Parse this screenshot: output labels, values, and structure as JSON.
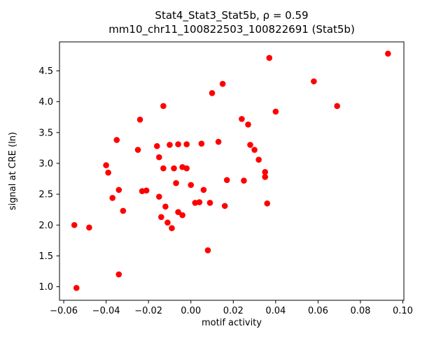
{
  "chart_data": {
    "type": "scatter",
    "title_line1": "Stat4_Stat3_Stat5b, ρ = 0.59",
    "title_line2": "mm10_chr11_100822503_100822691 (Stat5b)",
    "xlabel": "motif activity",
    "ylabel": "signal at CRE (ln)",
    "marker_color": "#ff0000",
    "marker_style": "circle",
    "legend": "none",
    "grid": false,
    "xlim": [
      -0.062,
      0.1005
    ],
    "ylim": [
      0.78,
      4.97
    ],
    "xticks": [
      -0.06,
      -0.04,
      -0.02,
      0.0,
      0.02,
      0.04,
      0.06,
      0.08,
      0.1
    ],
    "yticks": [
      1.0,
      1.5,
      2.0,
      2.5,
      3.0,
      3.5,
      4.0,
      4.5
    ],
    "correlation_rho": 0.59,
    "points": [
      [
        -0.055,
        2.0
      ],
      [
        -0.054,
        0.98
      ],
      [
        -0.048,
        1.96
      ],
      [
        -0.04,
        2.97
      ],
      [
        -0.039,
        2.85
      ],
      [
        -0.037,
        2.44
      ],
      [
        -0.035,
        3.38
      ],
      [
        -0.034,
        2.57
      ],
      [
        -0.034,
        1.2
      ],
      [
        -0.032,
        2.23
      ],
      [
        -0.025,
        3.22
      ],
      [
        -0.024,
        3.71
      ],
      [
        -0.023,
        2.55
      ],
      [
        -0.021,
        2.56
      ],
      [
        -0.016,
        3.28
      ],
      [
        -0.015,
        3.1
      ],
      [
        -0.015,
        2.46
      ],
      [
        -0.014,
        2.13
      ],
      [
        -0.013,
        3.93
      ],
      [
        -0.013,
        2.92
      ],
      [
        -0.012,
        2.3
      ],
      [
        -0.011,
        2.04
      ],
      [
        -0.01,
        3.3
      ],
      [
        -0.009,
        1.95
      ],
      [
        -0.008,
        2.92
      ],
      [
        -0.007,
        2.68
      ],
      [
        -0.006,
        3.31
      ],
      [
        -0.006,
        2.21
      ],
      [
        -0.004,
        2.94
      ],
      [
        -0.004,
        2.16
      ],
      [
        -0.002,
        3.31
      ],
      [
        -0.002,
        2.92
      ],
      [
        0.0,
        2.65
      ],
      [
        0.002,
        2.36
      ],
      [
        0.004,
        2.37
      ],
      [
        0.005,
        3.32
      ],
      [
        0.006,
        2.57
      ],
      [
        0.008,
        1.59
      ],
      [
        0.009,
        2.36
      ],
      [
        0.01,
        4.14
      ],
      [
        0.013,
        3.35
      ],
      [
        0.015,
        4.29
      ],
      [
        0.016,
        2.31
      ],
      [
        0.017,
        2.73
      ],
      [
        0.024,
        3.72
      ],
      [
        0.025,
        2.72
      ],
      [
        0.027,
        3.63
      ],
      [
        0.028,
        3.3
      ],
      [
        0.03,
        3.22
      ],
      [
        0.032,
        3.06
      ],
      [
        0.035,
        2.86
      ],
      [
        0.035,
        2.78
      ],
      [
        0.036,
        2.35
      ],
      [
        0.037,
        4.71
      ],
      [
        0.04,
        3.84
      ],
      [
        0.058,
        4.33
      ],
      [
        0.069,
        3.93
      ],
      [
        0.093,
        4.78
      ]
    ]
  }
}
